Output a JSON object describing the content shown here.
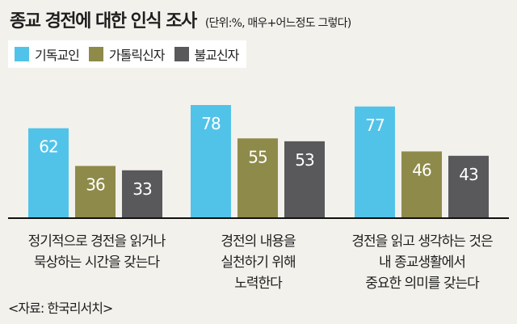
{
  "title": "종교 경전에 대한 인식 조사",
  "subtitle": "(단위:%, 매우+어느정도 그렇다)",
  "source": "<자료: 한국리서치>",
  "colors": {
    "christian": "#52c3e8",
    "catholic": "#8e8a4a",
    "buddhist": "#59595b",
    "baseline": "#111111",
    "value_text": "#ffffff"
  },
  "legend": [
    "기독교인",
    "가톨릭신자",
    "불교신자"
  ],
  "chart_data": {
    "type": "bar",
    "title": "종교 경전에 대한 인식 조사",
    "subtitle": "(단위:%, 매우+어느정도 그렇다)",
    "categories": [
      "정기적으로 경전을 읽거나\n묵상하는 시간을 갖는다",
      "경전의 내용을\n실천하기 위해\n노력한다",
      "경전을 읽고 생각하는 것은\n내 종교생활에서\n중요한 의미를 갖는다"
    ],
    "series": [
      {
        "name": "기독교인",
        "values": [
          62,
          78,
          77
        ]
      },
      {
        "name": "가톨릭신자",
        "values": [
          36,
          55,
          46
        ]
      },
      {
        "name": "불교신자",
        "values": [
          33,
          53,
          43
        ]
      }
    ],
    "ylim": [
      0,
      100
    ],
    "xlabel": "",
    "ylabel": "",
    "grid": false,
    "legend_position": "top-left",
    "value_labels": true
  }
}
